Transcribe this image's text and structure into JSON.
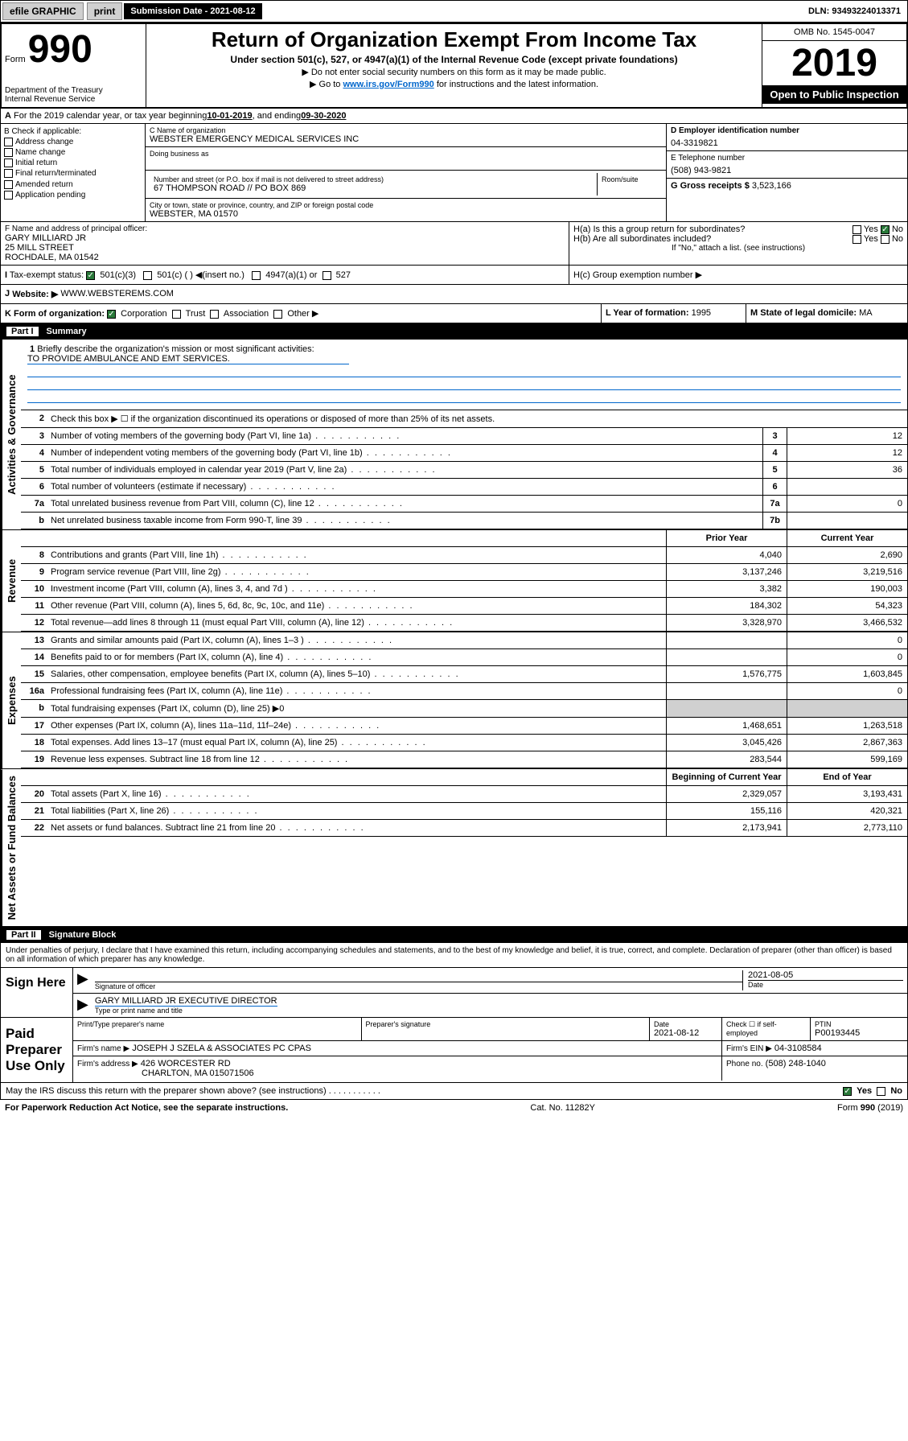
{
  "topbar": {
    "efile": "efile GRAPHIC",
    "print": "print",
    "subLabel": "Submission Date - 2021-08-12",
    "dln": "DLN: 93493224013371"
  },
  "header": {
    "formLabel": "Form",
    "formNum": "990",
    "dept": "Department of the Treasury\nInternal Revenue Service",
    "title": "Return of Organization Exempt From Income Tax",
    "sub1": "Under section 501(c), 527, or 4947(a)(1) of the Internal Revenue Code (except private foundations)",
    "sub2": "▶ Do not enter social security numbers on this form as it may be made public.",
    "sub3_pre": "▶ Go to ",
    "sub3_link": "www.irs.gov/Form990",
    "sub3_post": " for instructions and the latest information.",
    "omb": "OMB No. 1545-0047",
    "year": "2019",
    "open": "Open to Public Inspection"
  },
  "lineA": {
    "text_pre": "For the 2019 calendar year, or tax year beginning ",
    "begin": "10-01-2019",
    "mid": " , and ending ",
    "end": "09-30-2020"
  },
  "boxB": {
    "label": "B Check if applicable:",
    "items": [
      "Address change",
      "Name change",
      "Initial return",
      "Final return/terminated",
      "Amended return",
      "Application pending"
    ]
  },
  "boxC": {
    "nameLabel": "C Name of organization",
    "name": "WEBSTER EMERGENCY MEDICAL SERVICES INC",
    "dbaLabel": "Doing business as",
    "addrLabel": "Number and street (or P.O. box if mail is not delivered to street address)",
    "addr": "67 THOMPSON ROAD // PO BOX 869",
    "roomLabel": "Room/suite",
    "cityLabel": "City or town, state or province, country, and ZIP or foreign postal code",
    "city": "WEBSTER, MA  01570"
  },
  "boxD": {
    "label": "D Employer identification number",
    "value": "04-3319821"
  },
  "boxE": {
    "label": "E Telephone number",
    "value": "(508) 943-9821"
  },
  "boxG": {
    "label": "G Gross receipts $",
    "value": "3,523,166"
  },
  "boxF": {
    "label": "F  Name and address of principal officer:",
    "name": "GARY MILLIARD JR",
    "addr1": "25 MILL STREET",
    "addr2": "ROCHDALE, MA  01542"
  },
  "boxH": {
    "a": "H(a)  Is this a group return for subordinates?",
    "b": "H(b)  Are all subordinates included?",
    "bNote": "If \"No,\" attach a list. (see instructions)",
    "c": "H(c)  Group exemption number ▶",
    "yes": "Yes",
    "no": "No"
  },
  "boxI": {
    "label": "Tax-exempt status:",
    "c3": "501(c)(3)",
    "c": "501(c) (  ) ◀(insert no.)",
    "a1": "4947(a)(1) or",
    "527": "527"
  },
  "boxJ": {
    "label": "Website: ▶",
    "value": "WWW.WEBSTEREMS.COM"
  },
  "boxK": {
    "label": "K Form of organization:",
    "corp": "Corporation",
    "trust": "Trust",
    "assoc": "Association",
    "other": "Other ▶"
  },
  "boxL": {
    "label": "L Year of formation:",
    "value": "1995"
  },
  "boxM": {
    "label": "M State of legal domicile:",
    "value": "MA"
  },
  "part1": {
    "label": "Part I",
    "title": "Summary",
    "groups": [
      {
        "label": "Activities & Governance",
        "lines": [
          {
            "num": "1",
            "desc": "Briefly describe the organization's mission or most significant activities:",
            "mission": "TO PROVIDE AMBULANCE AND EMT SERVICES."
          },
          {
            "num": "2",
            "desc": "Check this box ▶ ☐  if the organization discontinued its operations or disposed of more than 25% of its net assets."
          },
          {
            "num": "3",
            "desc": "Number of voting members of the governing body (Part VI, line 1a)",
            "rnum": "3",
            "val": "12"
          },
          {
            "num": "4",
            "desc": "Number of independent voting members of the governing body (Part VI, line 1b)",
            "rnum": "4",
            "val": "12"
          },
          {
            "num": "5",
            "desc": "Total number of individuals employed in calendar year 2019 (Part V, line 2a)",
            "rnum": "5",
            "val": "36"
          },
          {
            "num": "6",
            "desc": "Total number of volunteers (estimate if necessary)",
            "rnum": "6",
            "val": ""
          },
          {
            "num": "7a",
            "desc": "Total unrelated business revenue from Part VIII, column (C), line 12",
            "rnum": "7a",
            "val": "0"
          },
          {
            "num": "b",
            "desc": "Net unrelated business taxable income from Form 990-T, line 39",
            "rnum": "7b",
            "val": ""
          }
        ]
      },
      {
        "label": "Revenue",
        "hdr1": "Prior Year",
        "hdr2": "Current Year",
        "lines": [
          {
            "num": "8",
            "desc": "Contributions and grants (Part VIII, line 1h)",
            "v1": "4,040",
            "v2": "2,690"
          },
          {
            "num": "9",
            "desc": "Program service revenue (Part VIII, line 2g)",
            "v1": "3,137,246",
            "v2": "3,219,516"
          },
          {
            "num": "10",
            "desc": "Investment income (Part VIII, column (A), lines 3, 4, and 7d )",
            "v1": "3,382",
            "v2": "190,003"
          },
          {
            "num": "11",
            "desc": "Other revenue (Part VIII, column (A), lines 5, 6d, 8c, 9c, 10c, and 11e)",
            "v1": "184,302",
            "v2": "54,323"
          },
          {
            "num": "12",
            "desc": "Total revenue—add lines 8 through 11 (must equal Part VIII, column (A), line 12)",
            "v1": "3,328,970",
            "v2": "3,466,532"
          }
        ]
      },
      {
        "label": "Expenses",
        "lines": [
          {
            "num": "13",
            "desc": "Grants and similar amounts paid (Part IX, column (A), lines 1–3 )",
            "v1": "",
            "v2": "0"
          },
          {
            "num": "14",
            "desc": "Benefits paid to or for members (Part IX, column (A), line 4)",
            "v1": "",
            "v2": "0"
          },
          {
            "num": "15",
            "desc": "Salaries, other compensation, employee benefits (Part IX, column (A), lines 5–10)",
            "v1": "1,576,775",
            "v2": "1,603,845"
          },
          {
            "num": "16a",
            "desc": "Professional fundraising fees (Part IX, column (A), line 11e)",
            "v1": "",
            "v2": "0"
          },
          {
            "num": "b",
            "desc": "Total fundraising expenses (Part IX, column (D), line 25) ▶0",
            "shaded": true
          },
          {
            "num": "17",
            "desc": "Other expenses (Part IX, column (A), lines 11a–11d, 11f–24e)",
            "v1": "1,468,651",
            "v2": "1,263,518"
          },
          {
            "num": "18",
            "desc": "Total expenses. Add lines 13–17 (must equal Part IX, column (A), line 25)",
            "v1": "3,045,426",
            "v2": "2,867,363"
          },
          {
            "num": "19",
            "desc": "Revenue less expenses. Subtract line 18 from line 12",
            "v1": "283,544",
            "v2": "599,169"
          }
        ]
      },
      {
        "label": "Net Assets or Fund Balances",
        "hdr1": "Beginning of Current Year",
        "hdr2": "End of Year",
        "lines": [
          {
            "num": "20",
            "desc": "Total assets (Part X, line 16)",
            "v1": "2,329,057",
            "v2": "3,193,431"
          },
          {
            "num": "21",
            "desc": "Total liabilities (Part X, line 26)",
            "v1": "155,116",
            "v2": "420,321"
          },
          {
            "num": "22",
            "desc": "Net assets or fund balances. Subtract line 21 from line 20",
            "v1": "2,173,941",
            "v2": "2,773,110"
          }
        ]
      }
    ]
  },
  "part2": {
    "label": "Part II",
    "title": "Signature Block",
    "perjury": "Under penalties of perjury, I declare that I have examined this return, including accompanying schedules and statements, and to the best of my knowledge and belief, it is true, correct, and complete. Declaration of preparer (other than officer) is based on all information of which preparer has any knowledge.",
    "signHere": "Sign Here",
    "sigOfficer": "Signature of officer",
    "sigDate": "2021-08-05",
    "dateLabel": "Date",
    "sigName": "GARY MILLIARD JR  EXECUTIVE DIRECTOR",
    "typeName": "Type or print name and title",
    "paidLabel": "Paid Preparer Use Only",
    "prep": {
      "col1": "Print/Type preparer's name",
      "col2": "Preparer's signature",
      "col3": "Date",
      "col3v": "2021-08-12",
      "col4": "Check ☐ if self-employed",
      "col5": "PTIN",
      "col5v": "P00193445",
      "firmName": "Firm's name    ▶",
      "firmNameV": "JOSEPH J SZELA & ASSOCIATES PC CPAS",
      "firmEin": "Firm's EIN ▶",
      "firmEinV": "04-3108584",
      "firmAddr": "Firm's address ▶",
      "firmAddrV1": "426 WORCESTER RD",
      "firmAddrV2": "CHARLTON, MA  015071506",
      "phone": "Phone no.",
      "phoneV": "(508) 248-1040"
    },
    "discuss": "May the IRS discuss this return with the preparer shown above? (see instructions)",
    "yes": "Yes",
    "no": "No"
  },
  "footer": {
    "left": "For Paperwork Reduction Act Notice, see the separate instructions.",
    "mid": "Cat. No. 11282Y",
    "right": "Form 990 (2019)"
  },
  "colors": {
    "link": "#0066cc",
    "black": "#000000",
    "check_green": "#2a7a3a"
  }
}
